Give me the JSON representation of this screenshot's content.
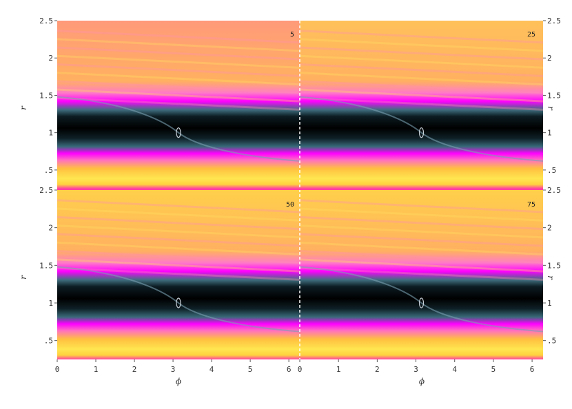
{
  "chart_data": {
    "type": "heatmap",
    "layout": "2x2",
    "xlabel": "ϕ",
    "ylabel": "r",
    "xlim": [
      0,
      6.2832
    ],
    "ylim": [
      0.25,
      2.5
    ],
    "x_ticks": [
      0,
      1,
      2,
      3,
      4,
      5,
      6
    ],
    "x_tick_labels": [
      "0",
      "1",
      "2",
      "3",
      "4",
      "5",
      "6"
    ],
    "y_ticks": [
      2.5,
      2,
      1.5,
      1,
      0.5
    ],
    "y_tick_labels": [
      "2.5",
      "2",
      "1.5",
      "1",
      ".5"
    ],
    "colormap": [
      "#000000",
      "#1e3a44",
      "#3f7f8c",
      "#ff00ff",
      "#ff66cc",
      "#ffb060",
      "#ffe640"
    ],
    "fixed_point": {
      "phi": 3.1416,
      "r": 1.0
    },
    "panels": [
      {
        "label": "5",
        "background_color": "#ff9a7a"
      },
      {
        "label": "25",
        "background_color": "#ffc15a"
      },
      {
        "label": "50",
        "background_color": "#ffd04a"
      },
      {
        "label": "75",
        "background_color": "#ffd04a"
      }
    ]
  }
}
